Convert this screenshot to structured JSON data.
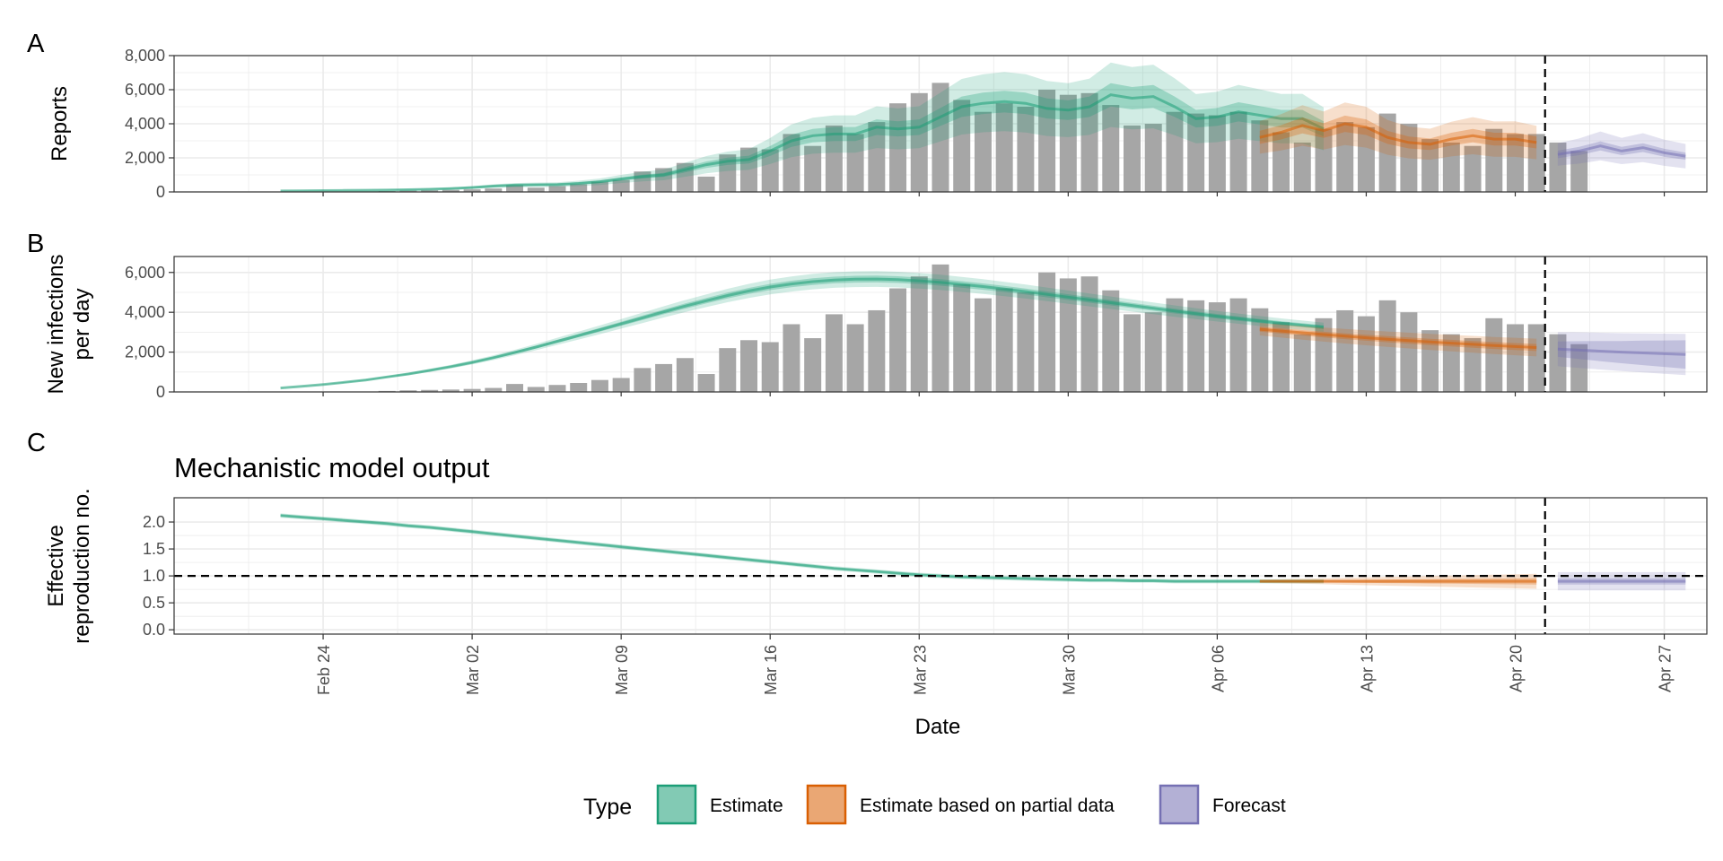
{
  "chart_data": [
    {
      "panel": "A",
      "type": "bar",
      "ylabel": "Reports",
      "ylim": [
        0,
        8000
      ],
      "yticks": [
        0,
        2000,
        4000,
        6000,
        8000
      ],
      "ytick_labels": [
        "0",
        "2,000",
        "4,000",
        "6,000",
        "8,000"
      ],
      "bars": {
        "start_date": "2020-02-21",
        "values": [
          0,
          0,
          0,
          0,
          0,
          0,
          50,
          80,
          100,
          120,
          150,
          200,
          400,
          250,
          350,
          450,
          600,
          700,
          1200,
          1400,
          1700,
          900,
          2200,
          2600,
          2500,
          3400,
          2700,
          3900,
          3400,
          4100,
          5200,
          5800,
          6400,
          5400,
          4700,
          5200,
          5000,
          6000,
          5700,
          5800,
          5100,
          3900,
          4000,
          4700,
          4600,
          4500,
          4700,
          4200,
          3500,
          2900,
          3700,
          4100,
          3800,
          4600,
          4000,
          3100,
          2900,
          2700,
          3700,
          3400,
          3400,
          2900,
          2400
        ]
      },
      "series": [
        {
          "name": "Estimate",
          "start_date": "2020-02-22",
          "median": [
            60,
            70,
            80,
            90,
            100,
            110,
            130,
            160,
            200,
            260,
            340,
            400,
            420,
            430,
            500,
            600,
            760,
            900,
            1000,
            1300,
            1600,
            1800,
            1900,
            2400,
            3000,
            3300,
            3400,
            3400,
            3800,
            3700,
            3800,
            4400,
            5000,
            5200,
            5300,
            5200,
            4900,
            4800,
            5000,
            5700,
            5500,
            5600,
            5000,
            4300,
            4400,
            4700,
            4500,
            4300,
            4300,
            3700
          ],
          "spread50": [
            0.12,
            0.12
          ],
          "spread90": [
            0.3,
            0.34
          ]
        },
        {
          "name": "Estimate based on partial data",
          "start_date": "2020-04-08",
          "median": [
            3200,
            3500,
            3900,
            3600,
            4000,
            3800,
            3200,
            2900,
            2800,
            3100,
            3300,
            3100,
            3100,
            2900
          ],
          "spread50": [
            0.12,
            0.12
          ],
          "spread90": [
            0.3,
            0.34
          ]
        },
        {
          "name": "Forecast",
          "start_date": "2020-04-22",
          "median": [
            2200,
            2400,
            2700,
            2400,
            2600,
            2300,
            2100
          ],
          "spread50": [
            0.1,
            0.1
          ],
          "spread90": [
            0.3,
            0.34
          ]
        }
      ]
    },
    {
      "panel": "B",
      "type": "bar",
      "ylabel": "New infections per day",
      "ylim": [
        0,
        6800
      ],
      "yticks": [
        0,
        2000,
        4000,
        6000
      ],
      "ytick_labels": [
        "0",
        "2,000",
        "4,000",
        "6,000"
      ],
      "bars": {
        "start_date": "2020-02-21",
        "values": [
          0,
          0,
          0,
          0,
          0,
          0,
          50,
          80,
          100,
          120,
          150,
          200,
          400,
          250,
          350,
          450,
          600,
          700,
          1200,
          1400,
          1700,
          900,
          2200,
          2600,
          2500,
          3400,
          2700,
          3900,
          3400,
          4100,
          5200,
          5800,
          6400,
          5400,
          4700,
          5200,
          5000,
          6000,
          5700,
          5800,
          5100,
          3900,
          4000,
          4700,
          4600,
          4500,
          4700,
          4200,
          3500,
          2900,
          3700,
          4100,
          3800,
          4600,
          4000,
          3100,
          2900,
          2700,
          3700,
          3400,
          3400,
          2900,
          2400
        ]
      },
      "series": [
        {
          "name": "Estimate",
          "start_date": "2020-02-22",
          "median": [
            200,
            280,
            370,
            480,
            600,
            750,
            900,
            1080,
            1270,
            1480,
            1720,
            1980,
            2250,
            2540,
            2830,
            3120,
            3420,
            3720,
            4020,
            4310,
            4580,
            4840,
            5070,
            5270,
            5420,
            5540,
            5620,
            5660,
            5670,
            5640,
            5580,
            5500,
            5400,
            5290,
            5170,
            5040,
            4900,
            4760,
            4620,
            4480,
            4340,
            4200,
            4060,
            3930,
            3800,
            3680,
            3560,
            3450,
            3350,
            3250
          ],
          "spread50": [
            0.03,
            0.03
          ],
          "spread90": [
            0.07,
            0.07
          ]
        },
        {
          "name": "Estimate based on partial data",
          "start_date": "2020-04-08",
          "median": [
            3150,
            3060,
            2970,
            2880,
            2800,
            2720,
            2650,
            2580,
            2510,
            2450,
            2390,
            2330,
            2280,
            2230
          ],
          "spread50": [
            0.04,
            0.08
          ],
          "spread90": [
            0.1,
            0.2
          ]
        },
        {
          "name": "Forecast",
          "start_date": "2020-04-22",
          "median": [
            2150,
            2100,
            2050,
            2000,
            1960,
            1920,
            1880
          ],
          "spread50": [
            0.18,
            0.38
          ],
          "spread90": [
            0.4,
            0.55
          ]
        }
      ]
    },
    {
      "panel": "C",
      "type": "line",
      "title": "Mechanistic model output",
      "ylabel": "Effective reproduction no.",
      "ylim": [
        -0.08,
        2.45
      ],
      "yticks": [
        0,
        0.5,
        1,
        1.5,
        2
      ],
      "ytick_labels": [
        "0.0",
        "0.5",
        "1.0",
        "1.5",
        "2.0"
      ],
      "reference_line": 1.0,
      "series": [
        {
          "name": "Estimate",
          "start_date": "2020-02-22",
          "median": [
            2.12,
            2.09,
            2.06,
            2.03,
            2.0,
            1.97,
            1.93,
            1.9,
            1.86,
            1.82,
            1.78,
            1.74,
            1.7,
            1.66,
            1.62,
            1.58,
            1.54,
            1.5,
            1.46,
            1.42,
            1.38,
            1.34,
            1.3,
            1.26,
            1.22,
            1.18,
            1.14,
            1.11,
            1.08,
            1.05,
            1.02,
            1.0,
            0.98,
            0.97,
            0.96,
            0.95,
            0.94,
            0.93,
            0.92,
            0.92,
            0.91,
            0.91,
            0.9,
            0.9,
            0.9,
            0.9,
            0.9,
            0.9,
            0.9,
            0.9
          ],
          "spread50": [
            0.015,
            0.015
          ],
          "spread90": [
            0.04,
            0.04
          ]
        },
        {
          "name": "Estimate based on partial data",
          "start_date": "2020-04-08",
          "median": [
            0.9,
            0.9,
            0.9,
            0.9,
            0.9,
            0.9,
            0.9,
            0.9,
            0.9,
            0.9,
            0.9,
            0.9,
            0.9,
            0.9
          ],
          "spread50": [
            0.01,
            0.06
          ],
          "spread90": [
            0.03,
            0.14
          ]
        },
        {
          "name": "Forecast",
          "start_date": "2020-04-22",
          "median": [
            0.9,
            0.9,
            0.9,
            0.9,
            0.9,
            0.9,
            0.9
          ],
          "spread50": [
            0.06,
            0.06
          ],
          "spread90": [
            0.17,
            0.17
          ]
        }
      ]
    }
  ],
  "shared": {
    "xlabel": "Date",
    "xdomain": [
      "2020-02-17",
      "2020-04-29"
    ],
    "xticks": [
      "2020-02-24",
      "2020-03-02",
      "2020-03-09",
      "2020-03-16",
      "2020-03-23",
      "2020-03-30",
      "2020-04-06",
      "2020-04-13",
      "2020-04-20",
      "2020-04-27"
    ],
    "xtick_labels": [
      "Feb 24",
      "Mar 02",
      "Mar 09",
      "Mar 16",
      "Mar 23",
      "Mar 30",
      "Apr 06",
      "Apr 13",
      "Apr 20",
      "Apr 27"
    ],
    "forecast_date": "2020-04-21",
    "tags": [
      "A",
      "B",
      "C"
    ]
  },
  "legend": {
    "title": "Type",
    "items": [
      {
        "label": "Estimate",
        "color": "#1b9e77"
      },
      {
        "label": "Estimate based on partial data",
        "color": "#d95f02"
      },
      {
        "label": "Forecast",
        "color": "#7570b3"
      }
    ]
  },
  "colors": {
    "bars": "#a6a6a6",
    "grid": "#ebebeb",
    "panel_border": "#333333"
  }
}
